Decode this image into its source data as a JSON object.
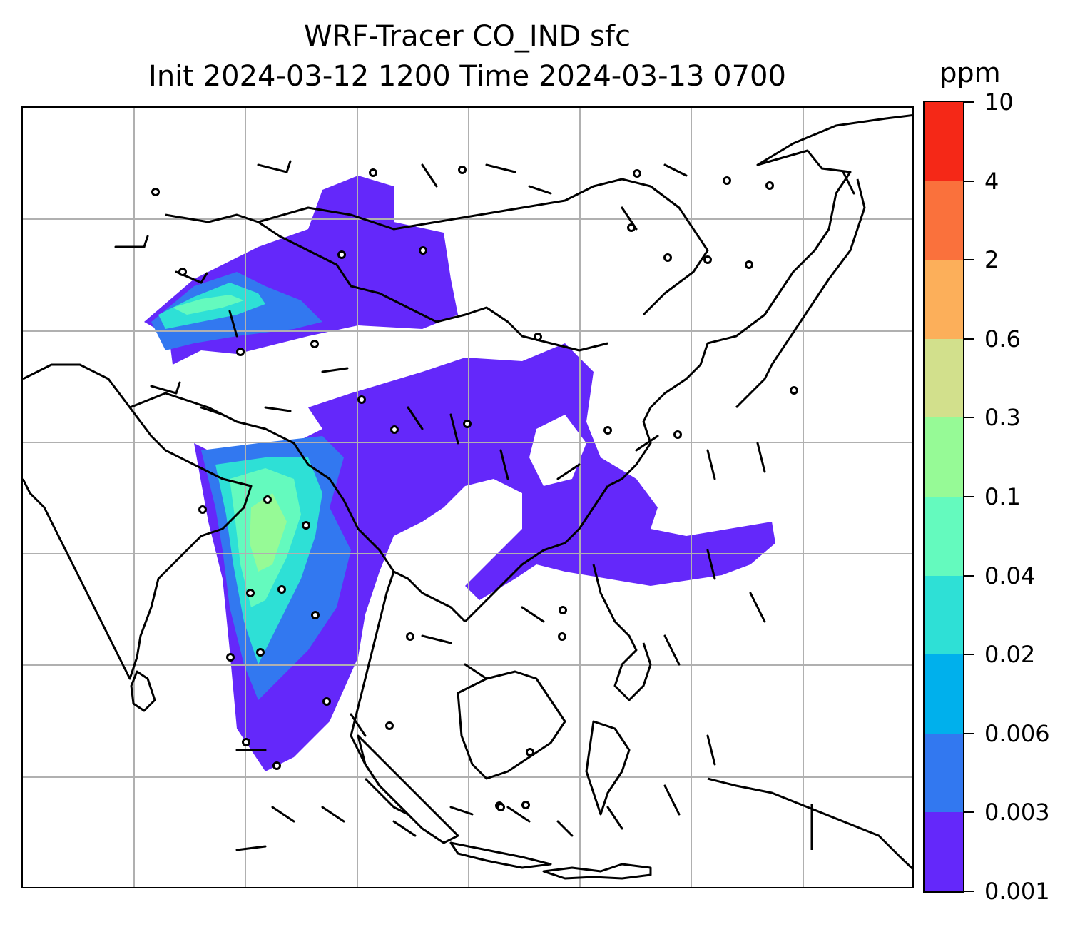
{
  "title": {
    "line1": "WRF-Tracer CO_IND sfc",
    "line2": "Init 2024-03-12 1200 Time 2024-03-13 0700"
  },
  "colorbar": {
    "unit": "ppm",
    "ticks": [
      "0.001",
      "0.003",
      "0.006",
      "0.02",
      "0.04",
      "0.1",
      "0.3",
      "0.6",
      "2",
      "4",
      "10"
    ],
    "colors": [
      "#6428fa",
      "#3278f0",
      "#00b0ec",
      "#2ee0d6",
      "#64fabe",
      "#96fa96",
      "#d2e08c",
      "#fcaf5a",
      "#fa713c",
      "#f52817"
    ]
  },
  "map": {
    "gridline_color": "#b0b0b0",
    "coast_color": "#000000",
    "barb_color": "#000000"
  }
}
